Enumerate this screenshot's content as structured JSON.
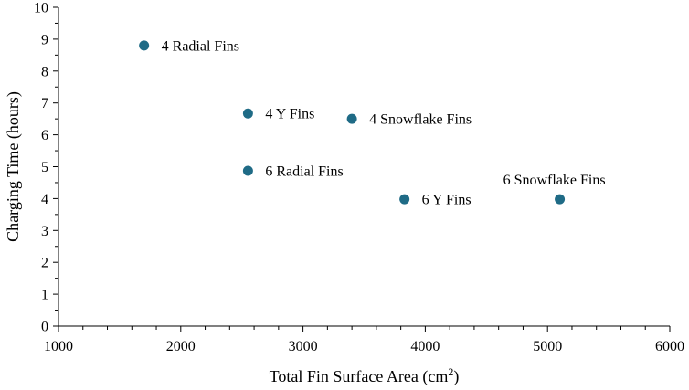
{
  "chart_data": {
    "type": "scatter",
    "xlabel": "Total Fin Surface Area (cm",
    "xlabel_sup": "2",
    "xlabel_suffix": ")",
    "ylabel": "Charging Time (hours)",
    "xlim": [
      1000,
      6000
    ],
    "ylim": [
      0,
      10
    ],
    "x_ticks": [
      1000,
      2000,
      3000,
      4000,
      5000,
      6000
    ],
    "y_ticks": [
      0,
      1,
      2,
      3,
      4,
      5,
      6,
      7,
      8,
      9,
      10
    ],
    "grid": false,
    "marker_color": "#1f6b86",
    "points": [
      {
        "label": "4 Radial Fins",
        "x": 1700,
        "y": 8.8,
        "label_pos": "right"
      },
      {
        "label": "4 Y Fins",
        "x": 2550,
        "y": 6.67,
        "label_pos": "right"
      },
      {
        "label": "4 Snowflake Fins",
        "x": 3400,
        "y": 6.5,
        "label_pos": "right"
      },
      {
        "label": "6 Radial Fins",
        "x": 2550,
        "y": 4.87,
        "label_pos": "right"
      },
      {
        "label": "6 Y Fins",
        "x": 3830,
        "y": 3.98,
        "label_pos": "right"
      },
      {
        "label": "6 Snowflake Fins",
        "x": 5100,
        "y": 3.98,
        "label_pos": "above"
      }
    ]
  }
}
